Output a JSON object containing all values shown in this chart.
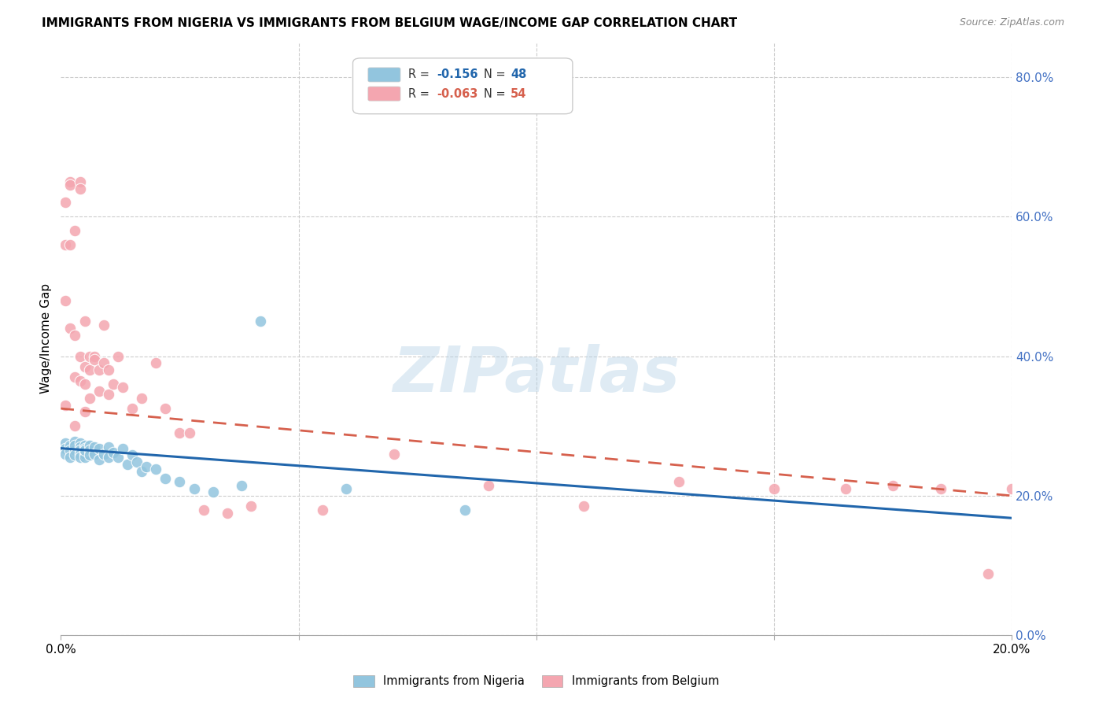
{
  "title": "IMMIGRANTS FROM NIGERIA VS IMMIGRANTS FROM BELGIUM WAGE/INCOME GAP CORRELATION CHART",
  "source": "Source: ZipAtlas.com",
  "ylabel": "Wage/Income Gap",
  "watermark": "ZIPatlas",
  "legend_r_nigeria": "-0.156",
  "legend_n_nigeria": "48",
  "legend_r_belgium": "-0.063",
  "legend_n_belgium": "54",
  "color_nigeria": "#92c5de",
  "color_belgium": "#f4a6b0",
  "color_nigeria_line": "#2166ac",
  "color_belgium_line": "#d6604d",
  "xlim": [
    0.0,
    0.2
  ],
  "ylim": [
    0.0,
    0.85
  ],
  "nigeria_x": [
    0.001,
    0.001,
    0.001,
    0.002,
    0.002,
    0.002,
    0.002,
    0.003,
    0.003,
    0.003,
    0.003,
    0.004,
    0.004,
    0.004,
    0.004,
    0.004,
    0.005,
    0.005,
    0.005,
    0.005,
    0.005,
    0.006,
    0.006,
    0.006,
    0.007,
    0.007,
    0.008,
    0.008,
    0.009,
    0.01,
    0.01,
    0.011,
    0.012,
    0.013,
    0.014,
    0.015,
    0.016,
    0.017,
    0.018,
    0.02,
    0.022,
    0.025,
    0.028,
    0.032,
    0.038,
    0.042,
    0.06,
    0.085
  ],
  "nigeria_y": [
    0.275,
    0.268,
    0.26,
    0.27,
    0.272,
    0.265,
    0.255,
    0.278,
    0.265,
    0.272,
    0.258,
    0.275,
    0.27,
    0.265,
    0.26,
    0.255,
    0.272,
    0.268,
    0.26,
    0.255,
    0.265,
    0.272,
    0.265,
    0.258,
    0.27,
    0.26,
    0.268,
    0.252,
    0.26,
    0.27,
    0.255,
    0.262,
    0.255,
    0.268,
    0.245,
    0.258,
    0.248,
    0.235,
    0.242,
    0.238,
    0.225,
    0.22,
    0.21,
    0.205,
    0.215,
    0.45,
    0.21,
    0.18
  ],
  "belgium_x": [
    0.001,
    0.001,
    0.001,
    0.001,
    0.002,
    0.002,
    0.002,
    0.002,
    0.003,
    0.003,
    0.003,
    0.003,
    0.004,
    0.004,
    0.004,
    0.004,
    0.005,
    0.005,
    0.005,
    0.005,
    0.006,
    0.006,
    0.006,
    0.007,
    0.007,
    0.008,
    0.008,
    0.009,
    0.009,
    0.01,
    0.01,
    0.011,
    0.012,
    0.013,
    0.015,
    0.017,
    0.02,
    0.022,
    0.025,
    0.027,
    0.03,
    0.035,
    0.04,
    0.055,
    0.07,
    0.09,
    0.11,
    0.13,
    0.15,
    0.165,
    0.175,
    0.185,
    0.195,
    0.2
  ],
  "belgium_y": [
    0.56,
    0.33,
    0.48,
    0.62,
    0.56,
    0.44,
    0.65,
    0.645,
    0.58,
    0.43,
    0.37,
    0.3,
    0.65,
    0.64,
    0.4,
    0.365,
    0.45,
    0.385,
    0.36,
    0.32,
    0.4,
    0.38,
    0.34,
    0.4,
    0.395,
    0.38,
    0.35,
    0.445,
    0.39,
    0.38,
    0.345,
    0.36,
    0.4,
    0.355,
    0.325,
    0.34,
    0.39,
    0.325,
    0.29,
    0.29,
    0.18,
    0.175,
    0.185,
    0.18,
    0.26,
    0.215,
    0.185,
    0.22,
    0.21,
    0.21,
    0.215,
    0.21,
    0.088,
    0.21
  ]
}
